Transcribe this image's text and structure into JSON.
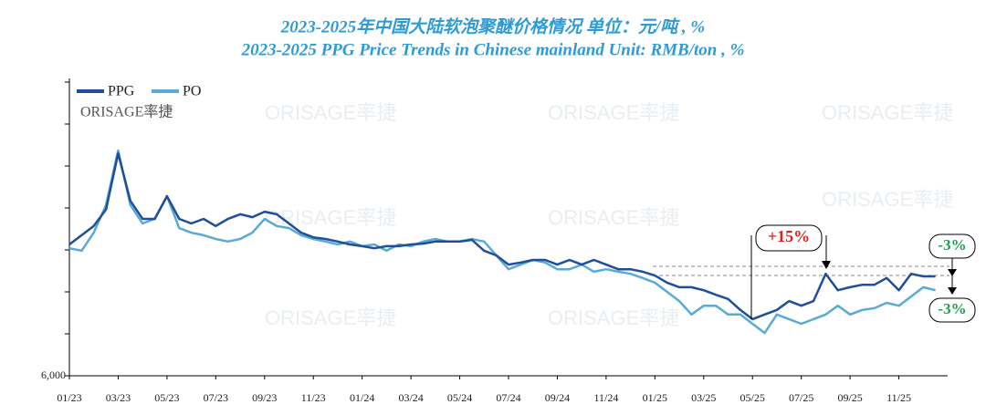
{
  "chart_data": {
    "type": "line",
    "title": "2023-2025年中国大陆软泡聚醚价格情况  单位：元/吨 , %",
    "subtitle": "2023-2025 PPG Price Trends in Chinese mainland Unit: RMB/ton , %",
    "logo": "ORISAGE率捷",
    "x": [
      0,
      0.5,
      1,
      1.5,
      2,
      2.5,
      3,
      3.5,
      4,
      4.5,
      5,
      5.5,
      6,
      6.5,
      7,
      7.5,
      8,
      8.5,
      9,
      9.5,
      10,
      10.5,
      11,
      11.5,
      12,
      12.5,
      13,
      13.5,
      14,
      14.5,
      15,
      15.5,
      16,
      16.5,
      17,
      17.5,
      18,
      18.5,
      19,
      19.5,
      20,
      20.5,
      21,
      21.5,
      22,
      22.5,
      23,
      23.5,
      24,
      24.5,
      25,
      25.5,
      26,
      26.5,
      27,
      27.5,
      28,
      28.5,
      29,
      29.5,
      30,
      30.5,
      31,
      31.5,
      32,
      32.5,
      33,
      33.5,
      34,
      34.5,
      35,
      35.5
    ],
    "series": [
      {
        "name": "PPG",
        "color": "#1f4e9c",
        "values": [
          9130,
          9350,
          9570,
          9960,
          11300,
          10170,
          9740,
          9740,
          10280,
          9740,
          9630,
          9740,
          9570,
          9740,
          9850,
          9780,
          9910,
          9850,
          9630,
          9410,
          9300,
          9260,
          9200,
          9130,
          9090,
          9040,
          9090,
          9090,
          9130,
          9150,
          9200,
          9200,
          9200,
          9240,
          8980,
          8870,
          8650,
          8700,
          8760,
          8760,
          8650,
          8760,
          8650,
          8760,
          8650,
          8540,
          8540,
          8480,
          8390,
          8220,
          8110,
          8110,
          8040,
          7930,
          7830,
          7570,
          7350,
          7460,
          7570,
          7780,
          7670,
          7780,
          8430,
          8040,
          8110,
          8170,
          8170,
          8330,
          8040,
          8430,
          8370,
          8370
        ]
      },
      {
        "name": "PO",
        "color": "#5aaad6",
        "values": [
          9040,
          8980,
          9410,
          10070,
          11370,
          10070,
          9630,
          9740,
          10280,
          9520,
          9410,
          9350,
          9260,
          9200,
          9260,
          9410,
          9740,
          9570,
          9520,
          9350,
          9260,
          9200,
          9130,
          9200,
          9090,
          9130,
          8980,
          9130,
          9090,
          9200,
          9260,
          9200,
          9200,
          9260,
          9200,
          8870,
          8540,
          8650,
          8760,
          8700,
          8540,
          8540,
          8650,
          8480,
          8540,
          8480,
          8430,
          8330,
          8220,
          8000,
          7780,
          7460,
          7670,
          7670,
          7460,
          7460,
          7240,
          7020,
          7460,
          7350,
          7240,
          7350,
          7460,
          7670,
          7460,
          7570,
          7610,
          7740,
          7670,
          7890,
          8110,
          8040
        ]
      }
    ],
    "xlim": [
      0,
      36
    ],
    "xticks": [
      {
        "value": 0,
        "label": "01/23"
      },
      {
        "value": 2,
        "label": "03/23"
      },
      {
        "value": 4,
        "label": "05/23"
      },
      {
        "value": 6,
        "label": "07/23"
      },
      {
        "value": 8,
        "label": "09/23"
      },
      {
        "value": 10,
        "label": "11/23"
      },
      {
        "value": 12,
        "label": "01/24"
      },
      {
        "value": 14,
        "label": "03/24"
      },
      {
        "value": 16,
        "label": "05/24"
      },
      {
        "value": 18,
        "label": "07/24"
      },
      {
        "value": 20,
        "label": "09/24"
      },
      {
        "value": 22,
        "label": "11/24"
      },
      {
        "value": 24,
        "label": "01/25"
      },
      {
        "value": 26,
        "label": "03/25"
      },
      {
        "value": 28,
        "label": "05/25"
      },
      {
        "value": 30,
        "label": "07/25"
      },
      {
        "value": 32,
        "label": "09/25"
      },
      {
        "value": 34,
        "label": "11/25"
      }
    ],
    "ylim": [
      6000,
      13000
    ],
    "yticks": [
      {
        "value": 6000,
        "label": "6,000"
      },
      {
        "value": 7000,
        "label": null
      },
      {
        "value": 8000,
        "label": null
      },
      {
        "value": 9000,
        "label": null
      },
      {
        "value": 10000,
        "label": null
      },
      {
        "value": 11000,
        "label": null
      },
      {
        "value": 12000,
        "label": null
      },
      {
        "value": 13000,
        "label": null
      }
    ],
    "annotations": [
      "+15%",
      "-3%",
      "-3%"
    ]
  }
}
